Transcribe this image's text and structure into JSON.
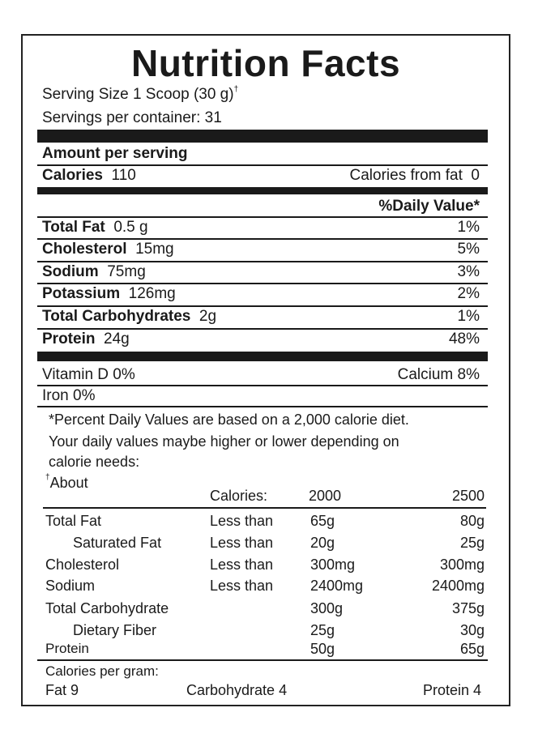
{
  "title": "Nutrition Facts",
  "serving_size": "Serving Size 1 Scoop (30 g)",
  "serving_size_mark": "†",
  "servings_per_container": "Servings per container: 31",
  "amount_per_serving": "Amount per serving",
  "calories": {
    "label": "Calories",
    "value": "110",
    "from_fat": "Calories from fat  0"
  },
  "daily_value_header": "%Daily Value*",
  "nutrients": [
    {
      "label": "Total Fat",
      "amount": "0.5 g",
      "dv": "1%"
    },
    {
      "label": "Cholesterol",
      "amount": "15mg",
      "dv": "5%"
    },
    {
      "label": "Sodium",
      "amount": "75mg",
      "dv": "3%"
    },
    {
      "label": "Potassium",
      "amount": "126mg",
      "dv": "2%"
    },
    {
      "label": "Total Carbohydrates",
      "amount": "2g",
      "dv": "1%"
    },
    {
      "label": "Protein",
      "amount": "24g",
      "dv": "48%"
    }
  ],
  "vitamins": {
    "vitamin_d": "Vitamin D 0%",
    "calcium": "Calcium 8%",
    "iron": "Iron 0%"
  },
  "footnote": [
    "*Percent Daily Values are based on a 2,000 calorie diet.",
    "Your daily values maybe higher or lower depending on",
    "calorie needs:"
  ],
  "about_mark": "†",
  "about": "About",
  "ref_header": {
    "label": "Calories:",
    "c2000": "2000",
    "c2500": "2500"
  },
  "ref_rows": [
    {
      "name": "Total Fat",
      "cond": "Less than",
      "v2000": "65g",
      "v2500": "80g",
      "indent": false
    },
    {
      "name": "Saturated Fat",
      "cond": "Less than",
      "v2000": "20g",
      "v2500": "25g",
      "indent": true
    },
    {
      "name": "Cholesterol",
      "cond": "Less than",
      "v2000": "300mg",
      "v2500": "300mg",
      "indent": false
    },
    {
      "name": "Sodium",
      "cond": "Less than",
      "v2000": "2400mg",
      "v2500": "2400mg",
      "indent": false
    },
    {
      "name": "Total Carbohydrate",
      "cond": "",
      "v2000": "300g",
      "v2500": "375g",
      "indent": false
    },
    {
      "name": "Dietary Fiber",
      "cond": "",
      "v2000": "25g",
      "v2500": "30g",
      "indent": true
    },
    {
      "name": "Protein",
      "cond": "",
      "v2000": "50g",
      "v2500": "65g",
      "indent": false
    }
  ],
  "calories_per_gram": {
    "label": "Calories per gram:",
    "fat": "Fat 9",
    "carb": "Carbohydrate 4",
    "protein": "Protein 4"
  }
}
